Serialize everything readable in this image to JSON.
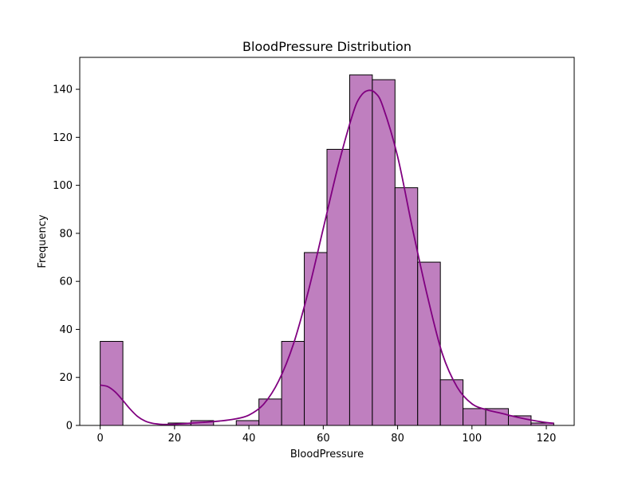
{
  "chart_data": {
    "type": "bar",
    "subtype": "histogram-with-kde",
    "title": "BloodPressure Distribution",
    "xlabel": "BloodPressure",
    "ylabel": "Frequency",
    "xlim": [
      -5.5,
      127.5
    ],
    "ylim": [
      0,
      153.3
    ],
    "xticks": [
      0,
      20,
      40,
      60,
      80,
      100,
      120
    ],
    "yticks": [
      0,
      20,
      40,
      60,
      80,
      100,
      120,
      140
    ],
    "grid": false,
    "bar_color": "#bf7fbf",
    "bar_edge_color": "#000000",
    "kde_color": "#800080",
    "bin_width": 6.1,
    "bins": [
      {
        "start": 0.0,
        "end": 6.1,
        "count": 35
      },
      {
        "start": 6.1,
        "end": 12.2,
        "count": 0
      },
      {
        "start": 12.2,
        "end": 18.3,
        "count": 0
      },
      {
        "start": 18.3,
        "end": 24.4,
        "count": 1
      },
      {
        "start": 24.4,
        "end": 30.5,
        "count": 2
      },
      {
        "start": 30.5,
        "end": 36.6,
        "count": 0
      },
      {
        "start": 36.6,
        "end": 42.7,
        "count": 2
      },
      {
        "start": 42.7,
        "end": 48.8,
        "count": 11
      },
      {
        "start": 48.8,
        "end": 54.9,
        "count": 35
      },
      {
        "start": 54.9,
        "end": 61.0,
        "count": 72
      },
      {
        "start": 61.0,
        "end": 67.1,
        "count": 115
      },
      {
        "start": 67.1,
        "end": 73.2,
        "count": 146
      },
      {
        "start": 73.2,
        "end": 79.3,
        "count": 144
      },
      {
        "start": 79.3,
        "end": 85.4,
        "count": 99
      },
      {
        "start": 85.4,
        "end": 91.5,
        "count": 68
      },
      {
        "start": 91.5,
        "end": 97.6,
        "count": 19
      },
      {
        "start": 97.6,
        "end": 103.7,
        "count": 7
      },
      {
        "start": 103.7,
        "end": 109.8,
        "count": 7
      },
      {
        "start": 109.8,
        "end": 115.9,
        "count": 4
      },
      {
        "start": 115.9,
        "end": 122.0,
        "count": 1
      }
    ],
    "kde": {
      "x": [
        0,
        2,
        4,
        6,
        8,
        10,
        12,
        14,
        16,
        18,
        20,
        24,
        28,
        32,
        36,
        40,
        44,
        48,
        52,
        56,
        60,
        64,
        68,
        70,
        72,
        74,
        76,
        80,
        84,
        88,
        92,
        96,
        100,
        104,
        108,
        112,
        116,
        120,
        122
      ],
      "y": [
        16.8,
        16.2,
        14.0,
        10.6,
        6.9,
        3.8,
        1.9,
        0.9,
        0.5,
        0.4,
        0.5,
        0.9,
        1.3,
        1.8,
        2.6,
        4.3,
        8.9,
        18.5,
        34.0,
        56.0,
        82.0,
        108.0,
        130.0,
        137.0,
        139.5,
        138.5,
        133.0,
        112.0,
        82.0,
        54.0,
        30.0,
        16.0,
        9.0,
        6.5,
        5.0,
        3.5,
        2.2,
        1.2,
        0.9
      ]
    }
  }
}
